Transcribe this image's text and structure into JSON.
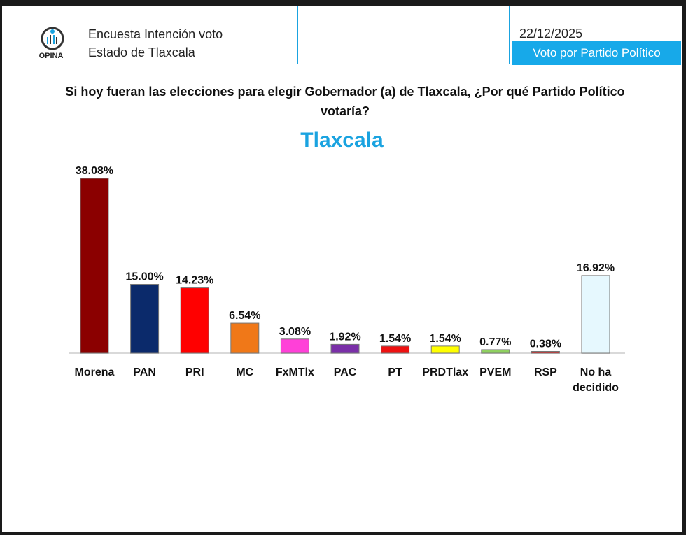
{
  "header": {
    "logo_text": "OPINA",
    "title_line1": "Encuesta Intención voto",
    "title_line2": "Estado de Tlaxcala",
    "date": "22/12/2025",
    "badge": "Voto por Partido Político",
    "accent_color": "#17a9e9"
  },
  "chart_data": {
    "type": "bar",
    "title": "Si hoy fueran las elecciones para elegir Gobernador (a) de Tlaxcala, ¿Por qué Partido Político votaría?",
    "subtitle": "Tlaxcala",
    "categories": [
      "Morena",
      "PAN",
      "PRI",
      "MC",
      "FxMTlx",
      "PAC",
      "PT",
      "PRDTlax",
      "PVEM",
      "RSP",
      "No ha decidido"
    ],
    "values": [
      38.08,
      15.0,
      14.23,
      6.54,
      3.08,
      1.92,
      1.54,
      1.54,
      0.77,
      0.38,
      16.92
    ],
    "data_labels": [
      "38.08%",
      "15.00%",
      "14.23%",
      "6.54%",
      "3.08%",
      "1.92%",
      "1.54%",
      "1.54%",
      "0.77%",
      "0.38%",
      "16.92%"
    ],
    "colors": [
      "#8b0000",
      "#0b2a6b",
      "#ff0000",
      "#f07818",
      "#ff40d8",
      "#7a2fa8",
      "#ee1111",
      "#ffff00",
      "#8fd060",
      "#ee1111",
      "#e6f8fe"
    ],
    "ylim": [
      0,
      40
    ],
    "grid": false,
    "legend": "none"
  }
}
